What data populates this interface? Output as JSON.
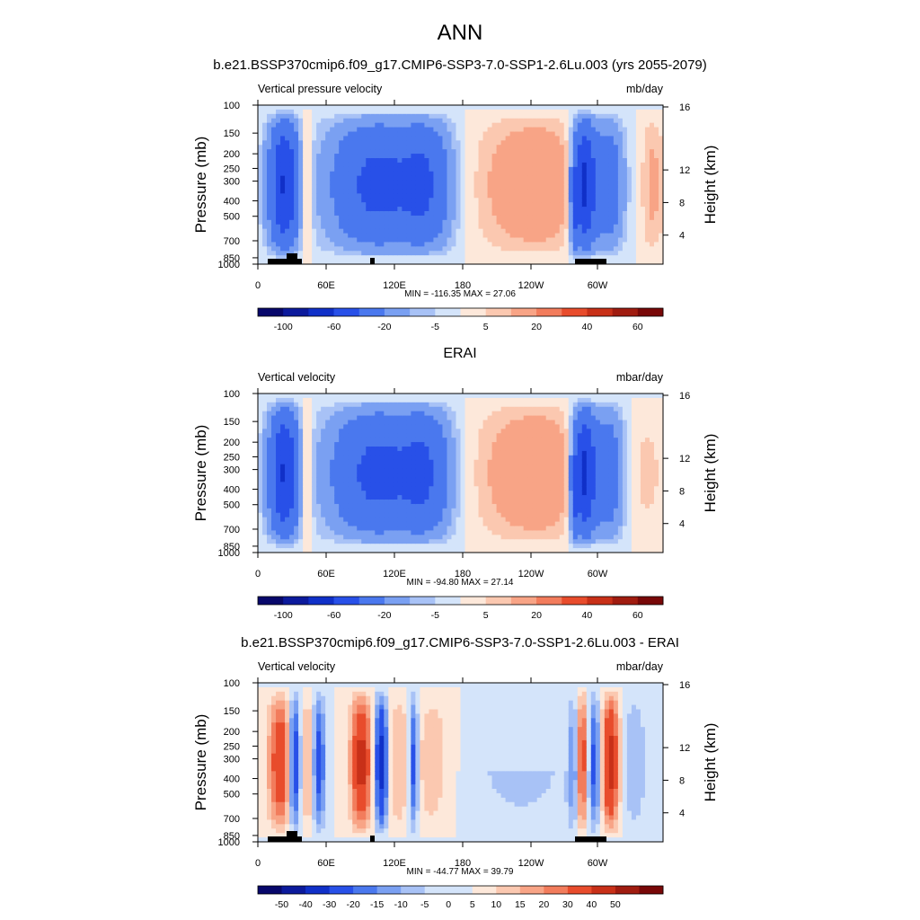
{
  "figure": {
    "season": "ANN",
    "background": "#ffffff"
  },
  "chart_data": [
    {
      "type": "heatmap",
      "title": "b.e21.BSSP370cmip6.f09_g17.CMIP6-SSP3-7.0-SSP1-2.6Lu.003 (yrs 2055-2079)",
      "left_label": "Vertical pressure velocity",
      "right_label": "mb/day",
      "ylabel": "Pressure (mb)",
      "y2label": "Height (km)",
      "x_ticks": [
        "0",
        "60E",
        "120E",
        "180",
        "120W",
        "60W"
      ],
      "y_ticks": [
        "100",
        "150",
        "200",
        "250",
        "300",
        "400",
        "500",
        "700",
        "850",
        "1000"
      ],
      "y2_ticks": [
        "4",
        "8",
        "12",
        "16"
      ],
      "stats": "MIN = -116.35  MAX =  27.06",
      "colorbar": {
        "labels": [
          "-100",
          "-60",
          "-20",
          "-5",
          "5",
          "20",
          "40",
          "60"
        ],
        "colors": [
          "#08086b",
          "#0c1a9c",
          "#1030c8",
          "#2850e8",
          "#4a78ee",
          "#7aa0f2",
          "#a8c2f6",
          "#d4e4fa",
          "#fde8da",
          "#fbc8b0",
          "#f8a486",
          "#f27c5c",
          "#e84c2c",
          "#c83018",
          "#a01c10",
          "#780808"
        ]
      },
      "profile": "model"
    },
    {
      "type": "heatmap",
      "title": "ERAI",
      "left_label": "Vertical velocity",
      "right_label": "mbar/day",
      "ylabel": "Pressure (mb)",
      "y2label": "Height (km)",
      "x_ticks": [
        "0",
        "60E",
        "120E",
        "180",
        "120W",
        "60W"
      ],
      "y_ticks": [
        "100",
        "150",
        "200",
        "250",
        "300",
        "400",
        "500",
        "700",
        "850",
        "1000"
      ],
      "y2_ticks": [
        "4",
        "8",
        "12",
        "16"
      ],
      "stats": "MIN = -94.80  MAX =  27.14",
      "colorbar": {
        "labels": [
          "-100",
          "-60",
          "-20",
          "-5",
          "5",
          "20",
          "40",
          "60"
        ],
        "colors": [
          "#08086b",
          "#0c1a9c",
          "#1030c8",
          "#2850e8",
          "#4a78ee",
          "#7aa0f2",
          "#a8c2f6",
          "#d4e4fa",
          "#fde8da",
          "#fbc8b0",
          "#f8a486",
          "#f27c5c",
          "#e84c2c",
          "#c83018",
          "#a01c10",
          "#780808"
        ]
      },
      "profile": "obs"
    },
    {
      "type": "heatmap",
      "title": "b.e21.BSSP370cmip6.f09_g17.CMIP6-SSP3-7.0-SSP1-2.6Lu.003 - ERAI",
      "left_label": "Vertical velocity",
      "right_label": "mbar/day",
      "ylabel": "Pressure (mb)",
      "y2label": "Height (km)",
      "x_ticks": [
        "0",
        "60E",
        "120E",
        "180",
        "120W",
        "60W"
      ],
      "y_ticks": [
        "100",
        "150",
        "200",
        "250",
        "300",
        "400",
        "500",
        "700",
        "850",
        "1000"
      ],
      "y2_ticks": [
        "4",
        "8",
        "12",
        "16"
      ],
      "stats": "MIN = -44.77  MAX =  39.79",
      "colorbar": {
        "labels": [
          "-50",
          "-40",
          "-30",
          "-20",
          "-15",
          "-10",
          "-5",
          "0",
          "5",
          "10",
          "15",
          "20",
          "30",
          "40",
          "50"
        ],
        "colors": [
          "#08086b",
          "#0c1a9c",
          "#1030c8",
          "#2850e8",
          "#4a78ee",
          "#7aa0f2",
          "#a8c2f6",
          "#d4e4fa",
          "#d4e4fa",
          "#fde8da",
          "#fbc8b0",
          "#f8a486",
          "#f27c5c",
          "#e84c2c",
          "#c83018",
          "#a01c10",
          "#780808"
        ]
      },
      "profile": "diff"
    }
  ]
}
